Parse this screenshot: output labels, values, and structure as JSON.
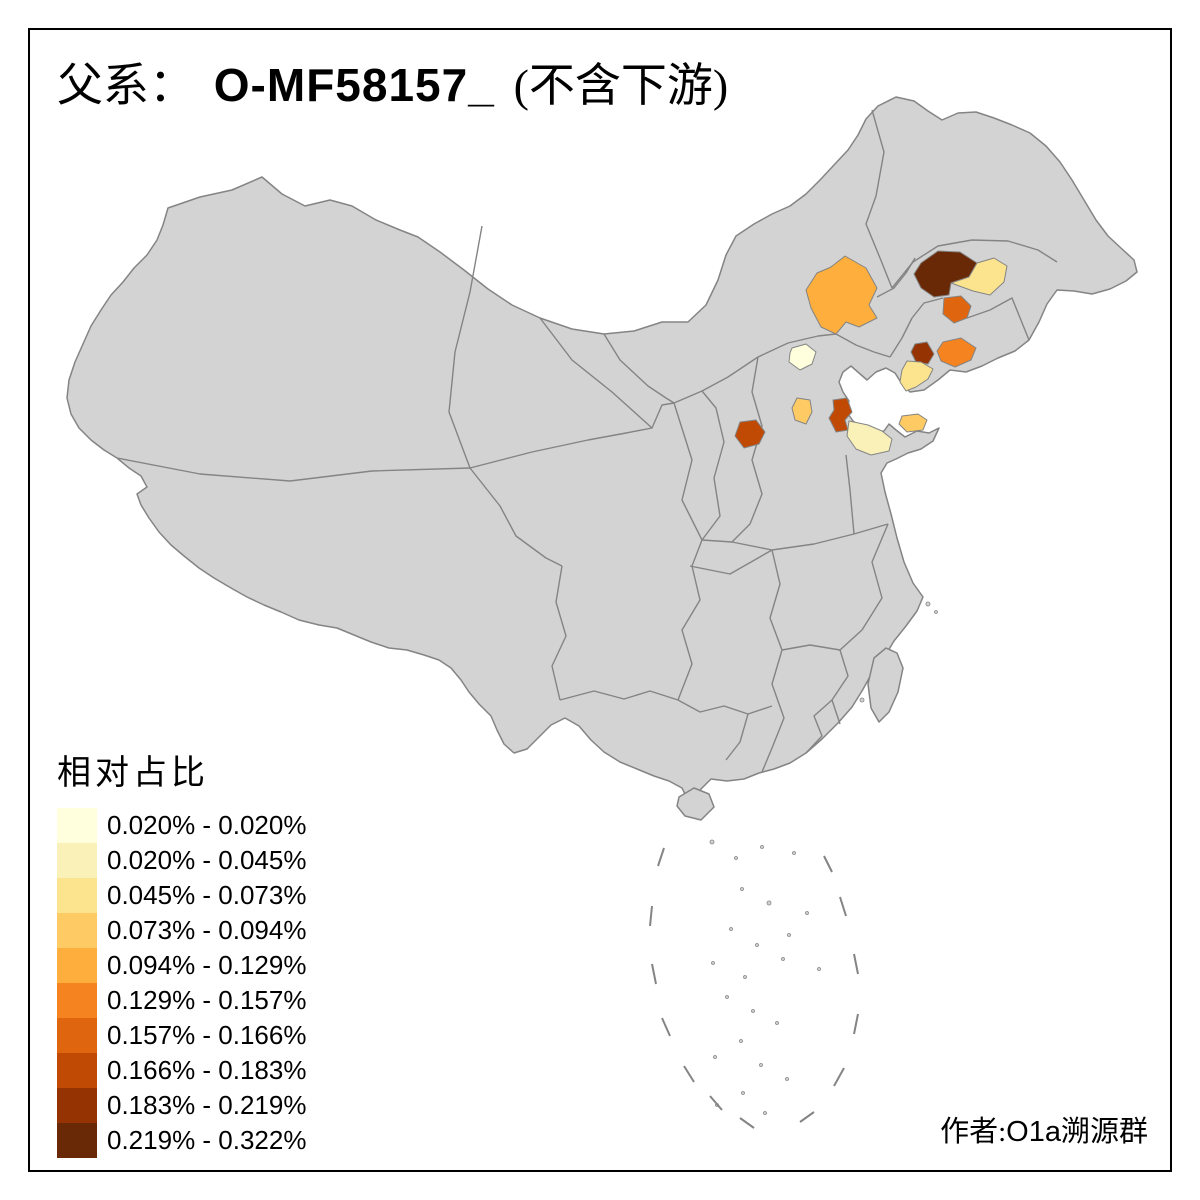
{
  "title": {
    "prefix": "父系：",
    "haplogroup": "O-MF58157_",
    "suffix": "(不含下游)"
  },
  "legend": {
    "title": "相对占比",
    "classes": [
      {
        "label": "0.020% - 0.020%",
        "color": "#FFFFDE"
      },
      {
        "label": "0.020% - 0.045%",
        "color": "#FAF1B8"
      },
      {
        "label": "0.045% - 0.073%",
        "color": "#FCE48E"
      },
      {
        "label": "0.073% - 0.094%",
        "color": "#FDCA64"
      },
      {
        "label": "0.094% - 0.129%",
        "color": "#FDAE3C"
      },
      {
        "label": "0.129% - 0.157%",
        "color": "#F5831F"
      },
      {
        "label": "0.157% - 0.166%",
        "color": "#DF650F"
      },
      {
        "label": "0.166% - 0.183%",
        "color": "#C04A04"
      },
      {
        "label": "0.183% - 0.219%",
        "color": "#963303"
      },
      {
        "label": "0.219% - 0.322%",
        "color": "#6A2906"
      }
    ]
  },
  "attribution": {
    "prefix": "作者:",
    "group_latin": "O1a",
    "suffix": "溯源群"
  },
  "map": {
    "base_fill": "#D3D3D3",
    "border_color": "#848484",
    "sea_color": "#FFFFFF",
    "frame_color": "#000000",
    "highlighted_regions": [
      {
        "id": "chifeng",
        "class": 5
      },
      {
        "id": "changchun",
        "class": 10
      },
      {
        "id": "jilin-city",
        "class": 3
      },
      {
        "id": "tieling",
        "class": 7
      },
      {
        "id": "anshan-liaoyang",
        "class": 9
      },
      {
        "id": "dandong",
        "class": 6
      },
      {
        "id": "dalian",
        "class": 3
      },
      {
        "id": "beijing",
        "class": 1
      },
      {
        "id": "hebei-south",
        "class": 4
      },
      {
        "id": "tianjin-cangzhou",
        "class": 8
      },
      {
        "id": "shandong-northwest",
        "class": 2
      },
      {
        "id": "shandong-east",
        "class": 4
      },
      {
        "id": "shanxi-southeast",
        "class": 8
      }
    ]
  },
  "chart_data": {
    "type": "choropleth",
    "title": "父系： O-MF58157_ (不含下游)",
    "legend_title": "相对占比",
    "legend_position": "bottom-left",
    "value_range": [
      "0.020%",
      "0.322%"
    ],
    "class_breaks": [
      "0.020%",
      "0.020%",
      "0.045%",
      "0.073%",
      "0.094%",
      "0.129%",
      "0.157%",
      "0.166%",
      "0.183%",
      "0.219%",
      "0.322%"
    ],
    "palette": [
      "#FFFFDE",
      "#FAF1B8",
      "#FCE48E",
      "#FDCA64",
      "#FDAE3C",
      "#F5831F",
      "#DF650F",
      "#C04A04",
      "#963303",
      "#6A2906"
    ],
    "regions": [
      {
        "id": "chifeng",
        "range": "0.094% - 0.129%"
      },
      {
        "id": "changchun",
        "range": "0.219% - 0.322%"
      },
      {
        "id": "jilin-city",
        "range": "0.045% - 0.073%"
      },
      {
        "id": "tieling",
        "range": "0.157% - 0.166%"
      },
      {
        "id": "anshan-liaoyang",
        "range": "0.183% - 0.219%"
      },
      {
        "id": "dandong",
        "range": "0.129% - 0.157%"
      },
      {
        "id": "dalian",
        "range": "0.045% - 0.073%"
      },
      {
        "id": "beijing",
        "range": "0.020% - 0.020%"
      },
      {
        "id": "hebei-south",
        "range": "0.073% - 0.094%"
      },
      {
        "id": "tianjin-cangzhou",
        "range": "0.166% - 0.183%"
      },
      {
        "id": "shandong-northwest",
        "range": "0.020% - 0.045%"
      },
      {
        "id": "shandong-east",
        "range": "0.073% - 0.094%"
      },
      {
        "id": "shanxi-southeast",
        "range": "0.166% - 0.183%"
      }
    ],
    "unhighlighted_fill": "#D3D3D3"
  }
}
